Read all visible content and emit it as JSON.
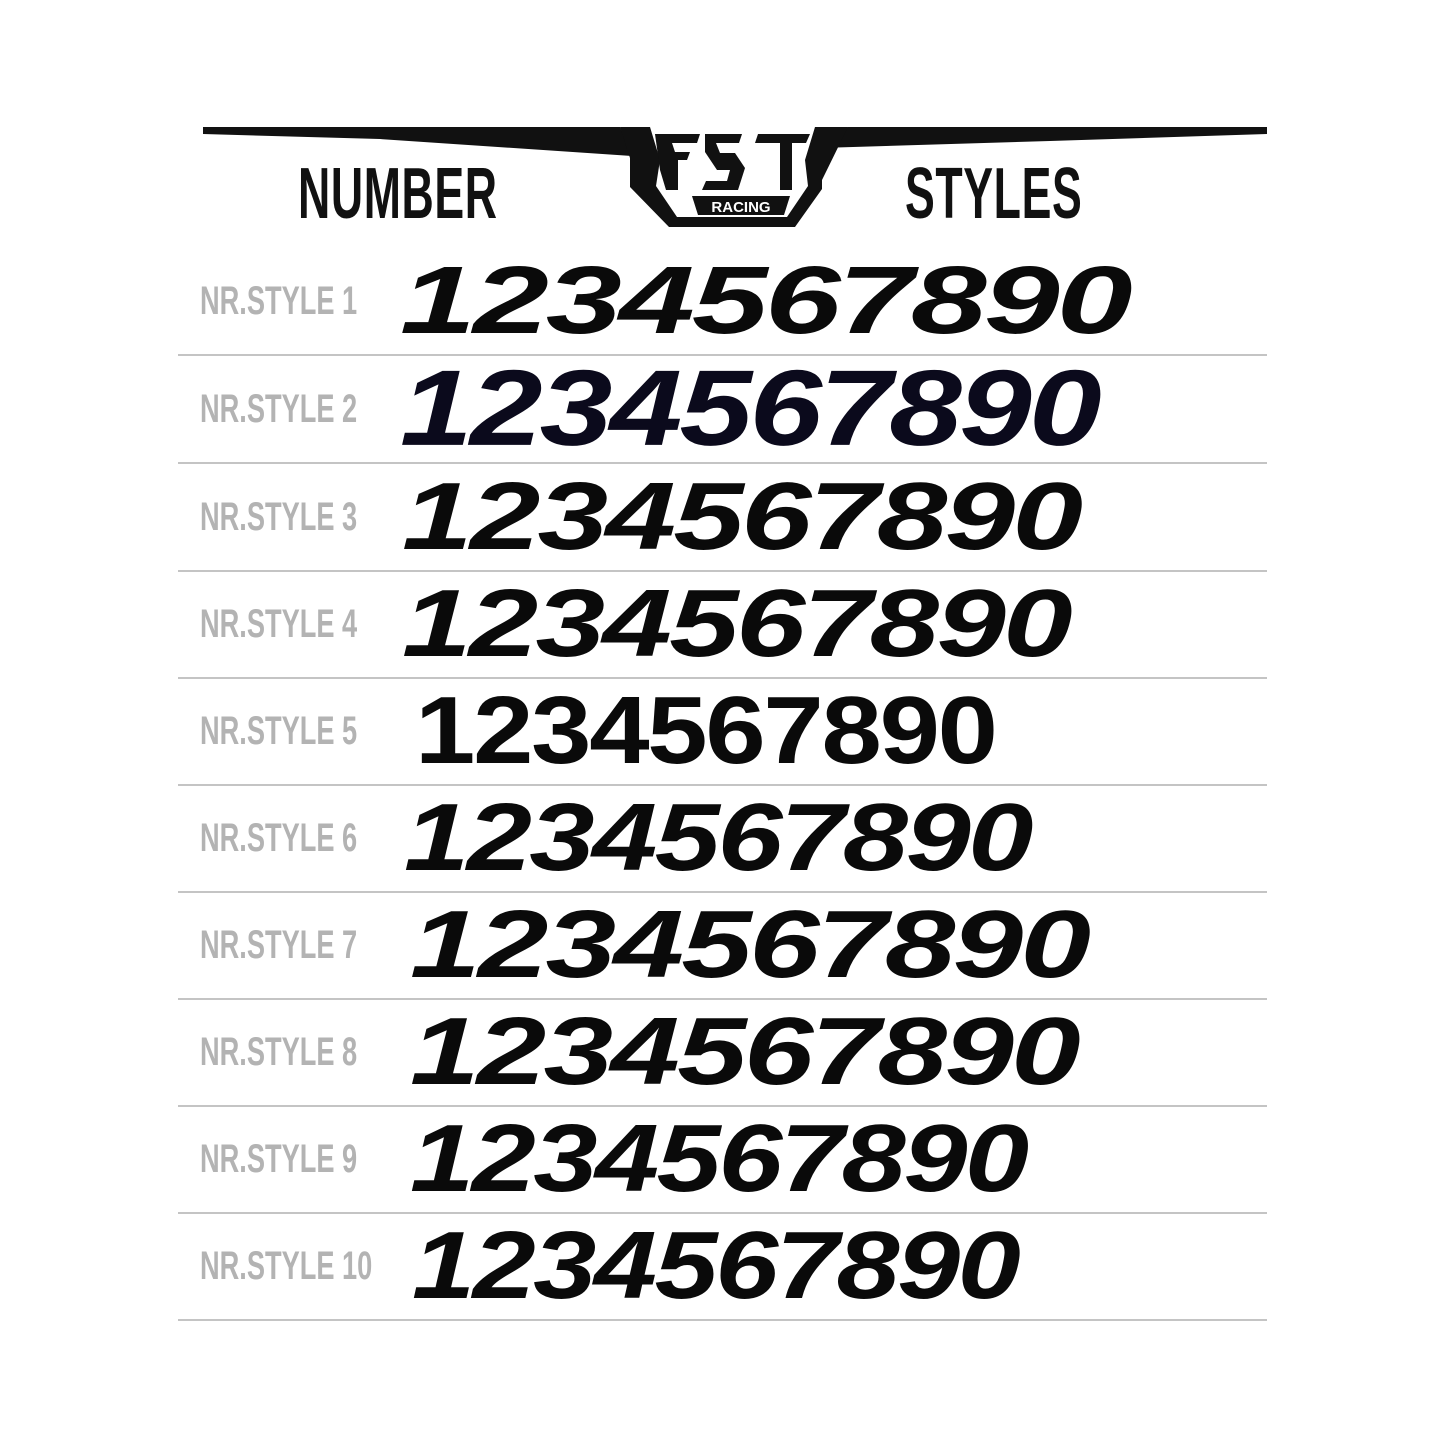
{
  "header": {
    "left_word": "NUMBER",
    "right_word": "STYLES",
    "logo": {
      "brand": "FST",
      "sub": "RACING"
    }
  },
  "styles": [
    {
      "label": "NR.STYLE 1",
      "sample": "1234567890"
    },
    {
      "label": "NR.STYLE 2",
      "sample": "1234567890"
    },
    {
      "label": "NR.STYLE 3",
      "sample": "1234567890"
    },
    {
      "label": "NR.STYLE 4",
      "sample": "1234567890"
    },
    {
      "label": "NR.STYLE 5",
      "sample": "1234567890"
    },
    {
      "label": "NR.STYLE 6",
      "sample": "1234567890"
    },
    {
      "label": "NR.STYLE 7",
      "sample": "1234567890"
    },
    {
      "label": "NR.STYLE 8",
      "sample": "1234567890"
    },
    {
      "label": "NR.STYLE 9",
      "sample": "1234567890"
    },
    {
      "label": "NR.STYLE 10",
      "sample": "1234567890"
    }
  ],
  "colors": {
    "label": "#b3b3b3",
    "digits": "#0a0a0a",
    "divider": "#c4c4c4"
  }
}
